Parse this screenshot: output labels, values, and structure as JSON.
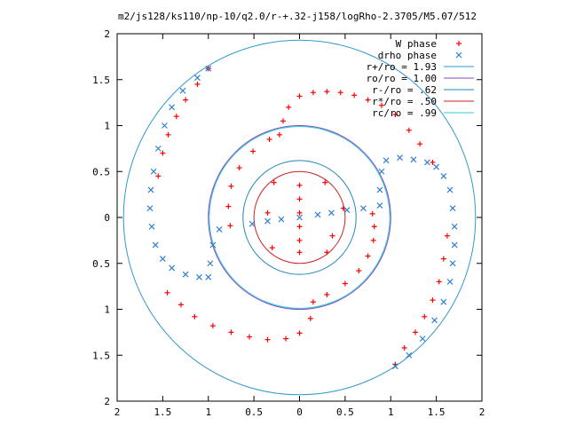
{
  "chart_data": {
    "type": "scatter",
    "title": "m2/js128/ks110/np-10/q2.0/r-+.32-j158/logRho-2.3705/M5.07/512",
    "xlabel": "",
    "ylabel": "",
    "xlim": [
      -2,
      2
    ],
    "ylim": [
      -2,
      2
    ],
    "x_tick_values": [
      -2,
      -1.5,
      -1,
      -0.5,
      0,
      0.5,
      1,
      1.5,
      2
    ],
    "x_tick_labels": [
      "2",
      "1.5",
      "1",
      "0.5",
      "0",
      "0.5",
      "1",
      "1.5",
      "2"
    ],
    "y_tick_values": [
      2,
      1.5,
      1,
      0.5,
      0,
      -0.5,
      -1,
      -1.5,
      -2
    ],
    "y_tick_labels": [
      "2",
      "1.5",
      "1",
      "0.5",
      "0",
      "0.5",
      "1",
      "1.5",
      "2"
    ],
    "grid": false,
    "legend_position": "top-right",
    "series": [
      {
        "name": "W phase",
        "marker": "plus",
        "color": "#ff0000",
        "points": [
          [
            -0.76,
            -0.09
          ],
          [
            -0.78,
            0.12
          ],
          [
            -0.75,
            0.34
          ],
          [
            -0.66,
            0.54
          ],
          [
            -0.51,
            0.72
          ],
          [
            -0.33,
            0.85
          ],
          [
            -0.22,
            0.9
          ],
          [
            -0.18,
            1.05
          ],
          [
            -0.12,
            1.2
          ],
          [
            0.0,
            1.32
          ],
          [
            0.15,
            1.36
          ],
          [
            0.3,
            1.37
          ],
          [
            0.45,
            1.36
          ],
          [
            0.6,
            1.33
          ],
          [
            0.75,
            1.28
          ],
          [
            0.9,
            1.22
          ],
          [
            1.05,
            1.12
          ],
          [
            1.2,
            0.95
          ],
          [
            1.32,
            0.8
          ],
          [
            1.46,
            0.6
          ],
          [
            0.8,
            0.04
          ],
          [
            0.82,
            -0.1
          ],
          [
            0.81,
            -0.25
          ],
          [
            0.75,
            -0.42
          ],
          [
            0.65,
            -0.58
          ],
          [
            0.5,
            -0.72
          ],
          [
            0.3,
            -0.84
          ],
          [
            0.15,
            -0.92
          ],
          [
            0.12,
            -1.1
          ],
          [
            0.0,
            -1.26
          ],
          [
            -0.15,
            -1.32
          ],
          [
            -0.35,
            -1.33
          ],
          [
            -0.55,
            -1.3
          ],
          [
            -0.75,
            -1.25
          ],
          [
            -0.95,
            -1.18
          ],
          [
            -1.15,
            -1.08
          ],
          [
            -1.3,
            -0.95
          ],
          [
            -1.45,
            -0.82
          ],
          [
            -1.0,
            1.62
          ],
          [
            -1.12,
            1.45
          ],
          [
            -1.25,
            1.28
          ],
          [
            -1.35,
            1.1
          ],
          [
            -1.44,
            0.9
          ],
          [
            -1.5,
            0.7
          ],
          [
            -1.55,
            0.45
          ],
          [
            1.05,
            -1.6
          ],
          [
            1.15,
            -1.42
          ],
          [
            1.27,
            -1.25
          ],
          [
            1.37,
            -1.08
          ],
          [
            1.46,
            -0.9
          ],
          [
            1.53,
            -0.7
          ],
          [
            1.58,
            -0.45
          ],
          [
            1.62,
            -0.2
          ],
          [
            0.0,
            0.35
          ],
          [
            0.0,
            0.2
          ],
          [
            0.0,
            0.05
          ],
          [
            0.0,
            -0.1
          ],
          [
            0.0,
            -0.25
          ],
          [
            0.0,
            -0.38
          ],
          [
            -0.28,
            0.38
          ],
          [
            0.28,
            0.38
          ],
          [
            0.36,
            -0.2
          ],
          [
            0.3,
            -0.38
          ],
          [
            -0.3,
            -0.33
          ],
          [
            -0.35,
            0.05
          ],
          [
            0.48,
            0.1
          ]
        ]
      },
      {
        "name": "drho phase",
        "marker": "cross",
        "color": "#3080d0",
        "points": [
          [
            -0.52,
            -0.07
          ],
          [
            -0.35,
            -0.04
          ],
          [
            -0.2,
            -0.02
          ],
          [
            0.0,
            0.0
          ],
          [
            0.2,
            0.03
          ],
          [
            0.35,
            0.05
          ],
          [
            0.52,
            0.08
          ],
          [
            0.7,
            0.1
          ],
          [
            0.88,
            0.13
          ],
          [
            0.88,
            0.3
          ],
          [
            0.9,
            0.5
          ],
          [
            0.95,
            0.62
          ],
          [
            1.1,
            0.65
          ],
          [
            1.25,
            0.63
          ],
          [
            1.4,
            0.6
          ],
          [
            1.5,
            0.55
          ],
          [
            1.58,
            0.45
          ],
          [
            1.65,
            0.3
          ],
          [
            1.68,
            0.1
          ],
          [
            1.7,
            -0.1
          ],
          [
            1.7,
            -0.3
          ],
          [
            1.68,
            -0.5
          ],
          [
            1.65,
            -0.7
          ],
          [
            1.58,
            -0.92
          ],
          [
            1.48,
            -1.12
          ],
          [
            1.35,
            -1.32
          ],
          [
            1.2,
            -1.5
          ],
          [
            1.05,
            -1.62
          ],
          [
            -0.88,
            -0.13
          ],
          [
            -0.95,
            -0.3
          ],
          [
            -0.98,
            -0.5
          ],
          [
            -1.0,
            -0.65
          ],
          [
            -1.1,
            -0.65
          ],
          [
            -1.25,
            -0.62
          ],
          [
            -1.4,
            -0.55
          ],
          [
            -1.5,
            -0.45
          ],
          [
            -1.58,
            -0.3
          ],
          [
            -1.62,
            -0.1
          ],
          [
            -1.64,
            0.1
          ],
          [
            -1.63,
            0.3
          ],
          [
            -1.6,
            0.5
          ],
          [
            -1.55,
            0.75
          ],
          [
            -1.48,
            1.0
          ],
          [
            -1.4,
            1.2
          ],
          [
            -1.28,
            1.38
          ],
          [
            -1.12,
            1.52
          ],
          [
            -1.0,
            1.62
          ]
        ]
      },
      {
        "name": "r+/ro = 1.93",
        "type": "circle",
        "radius": 1.93,
        "color": "#3399cc"
      },
      {
        "name": "ro/ro = 1.00",
        "type": "circle",
        "radius": 1.0,
        "color": "#8844cc"
      },
      {
        "name": "r-/ro = .62",
        "type": "circle",
        "radius": 0.62,
        "color": "#2288bb"
      },
      {
        "name": "r*/ro = .50",
        "type": "circle",
        "radius": 0.5,
        "color": "#cc2222"
      },
      {
        "name": "rc/ro = .99",
        "type": "circle",
        "radius": 0.99,
        "color": "#33cccc"
      }
    ]
  }
}
